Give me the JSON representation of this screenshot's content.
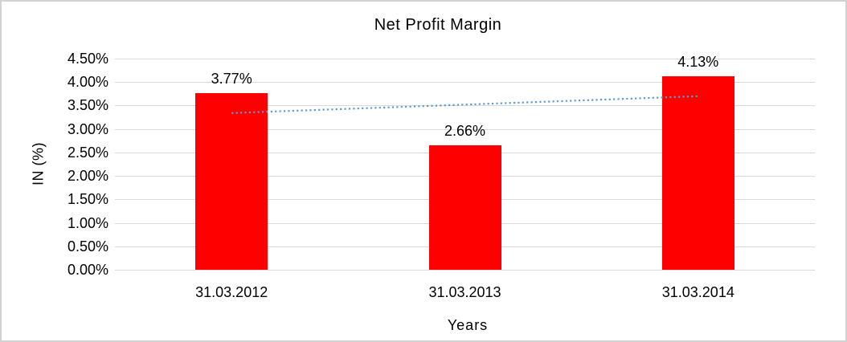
{
  "window": {
    "background": "#ffffff",
    "border_color": "#d2d2d2"
  },
  "chart_data": {
    "type": "bar",
    "title": "Net Profit Margin",
    "xlabel": "Years",
    "ylabel": "IN (%)",
    "categories": [
      "31.03.2012",
      "31.03.2013",
      "31.03.2014"
    ],
    "series": [
      {
        "name": "Net Profit Margin",
        "values": [
          3.77,
          2.66,
          4.13
        ]
      }
    ],
    "data_labels": [
      "3.77%",
      "2.66%",
      "4.13%"
    ],
    "ylim": [
      0,
      4.5
    ],
    "ytick_step": 0.5,
    "ytick_labels": [
      "0.00%",
      "0.50%",
      "1.00%",
      "1.50%",
      "2.00%",
      "2.50%",
      "3.00%",
      "3.50%",
      "4.00%",
      "4.50%"
    ],
    "grid": true,
    "legend": "none",
    "bar_color": "#ff0000",
    "gridline_color": "#d9d9d9",
    "text_color": "#000000",
    "trendline": {
      "type": "linear",
      "style": "dotted",
      "color": "#5b9bd5",
      "start_value": 3.34,
      "end_value": 3.7
    }
  }
}
